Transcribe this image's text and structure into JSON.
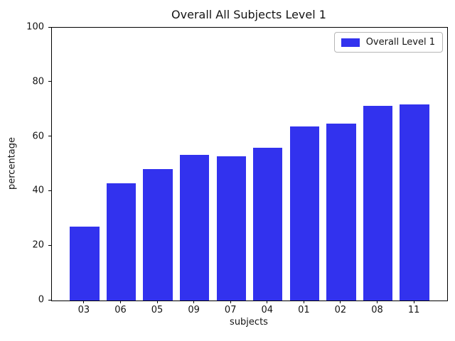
{
  "chart_data": {
    "type": "bar",
    "title": "Overall All Subjects Level 1",
    "xlabel": "subjects",
    "ylabel": "percentage",
    "categories": [
      "03",
      "06",
      "05",
      "09",
      "07",
      "04",
      "01",
      "02",
      "08",
      "11"
    ],
    "values": [
      27.0,
      43.0,
      48.2,
      53.3,
      52.8,
      56.0,
      63.9,
      64.8,
      71.3,
      71.8
    ],
    "ylim": [
      0,
      100
    ],
    "yticks": [
      0,
      20,
      40,
      60,
      80,
      100
    ],
    "bar_width_ratio": 0.8,
    "grid": false,
    "bar_color": "#3232ee",
    "axis_color": "#000000",
    "text_color": "#141414",
    "legend": {
      "label": "Overall Level 1",
      "position": "upper right"
    }
  }
}
